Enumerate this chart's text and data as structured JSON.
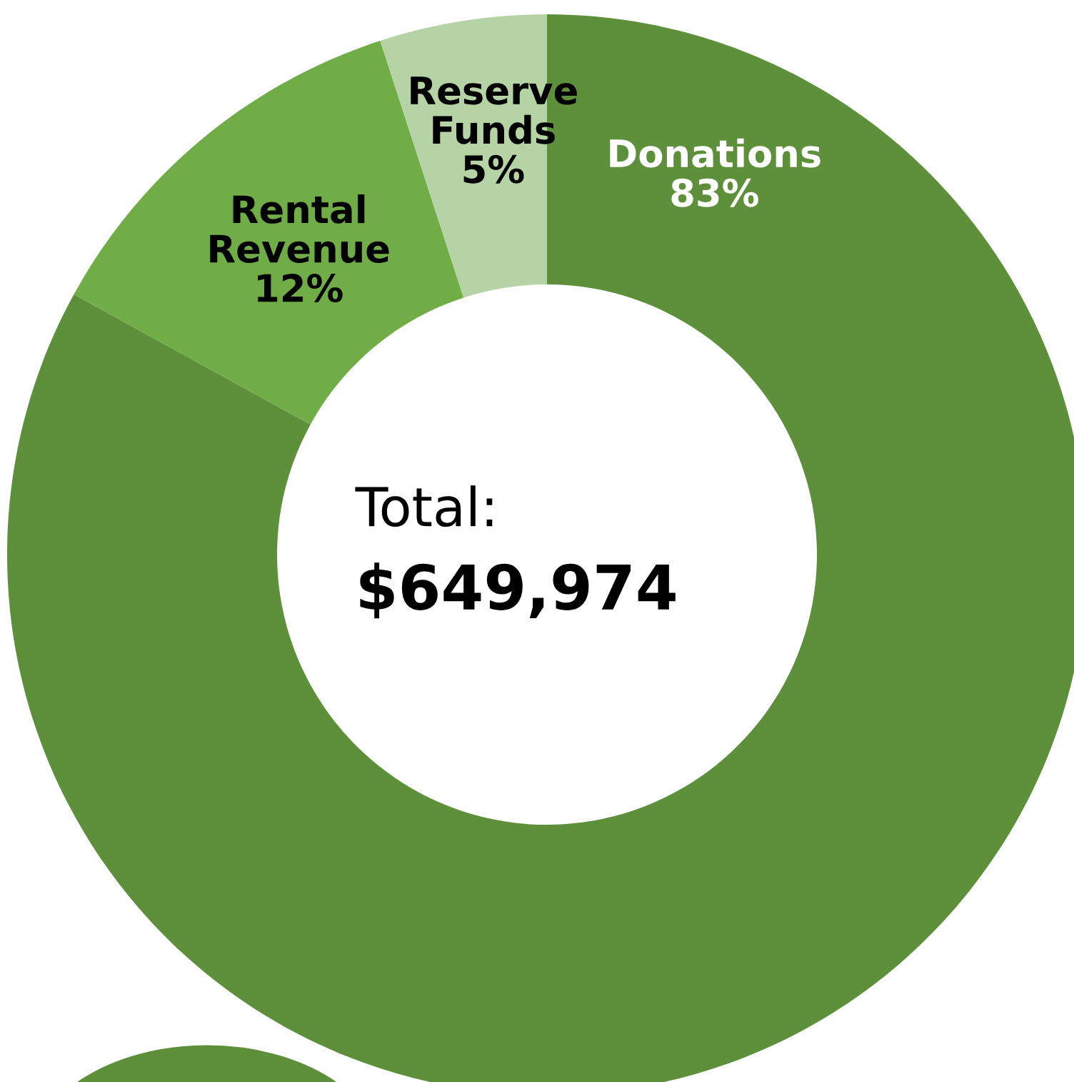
{
  "chart_data": {
    "type": "donut",
    "categories": [
      "Donations",
      "Rental Revenue",
      "Reserve Funds"
    ],
    "values": [
      83,
      12,
      5
    ],
    "colors": [
      "#5e8f3a",
      "#70ad47",
      "#b6d3a5"
    ],
    "value_labels": [
      "83%",
      "12%",
      "5%"
    ],
    "annotations": [
      "Total:",
      "$649,974"
    ]
  }
}
